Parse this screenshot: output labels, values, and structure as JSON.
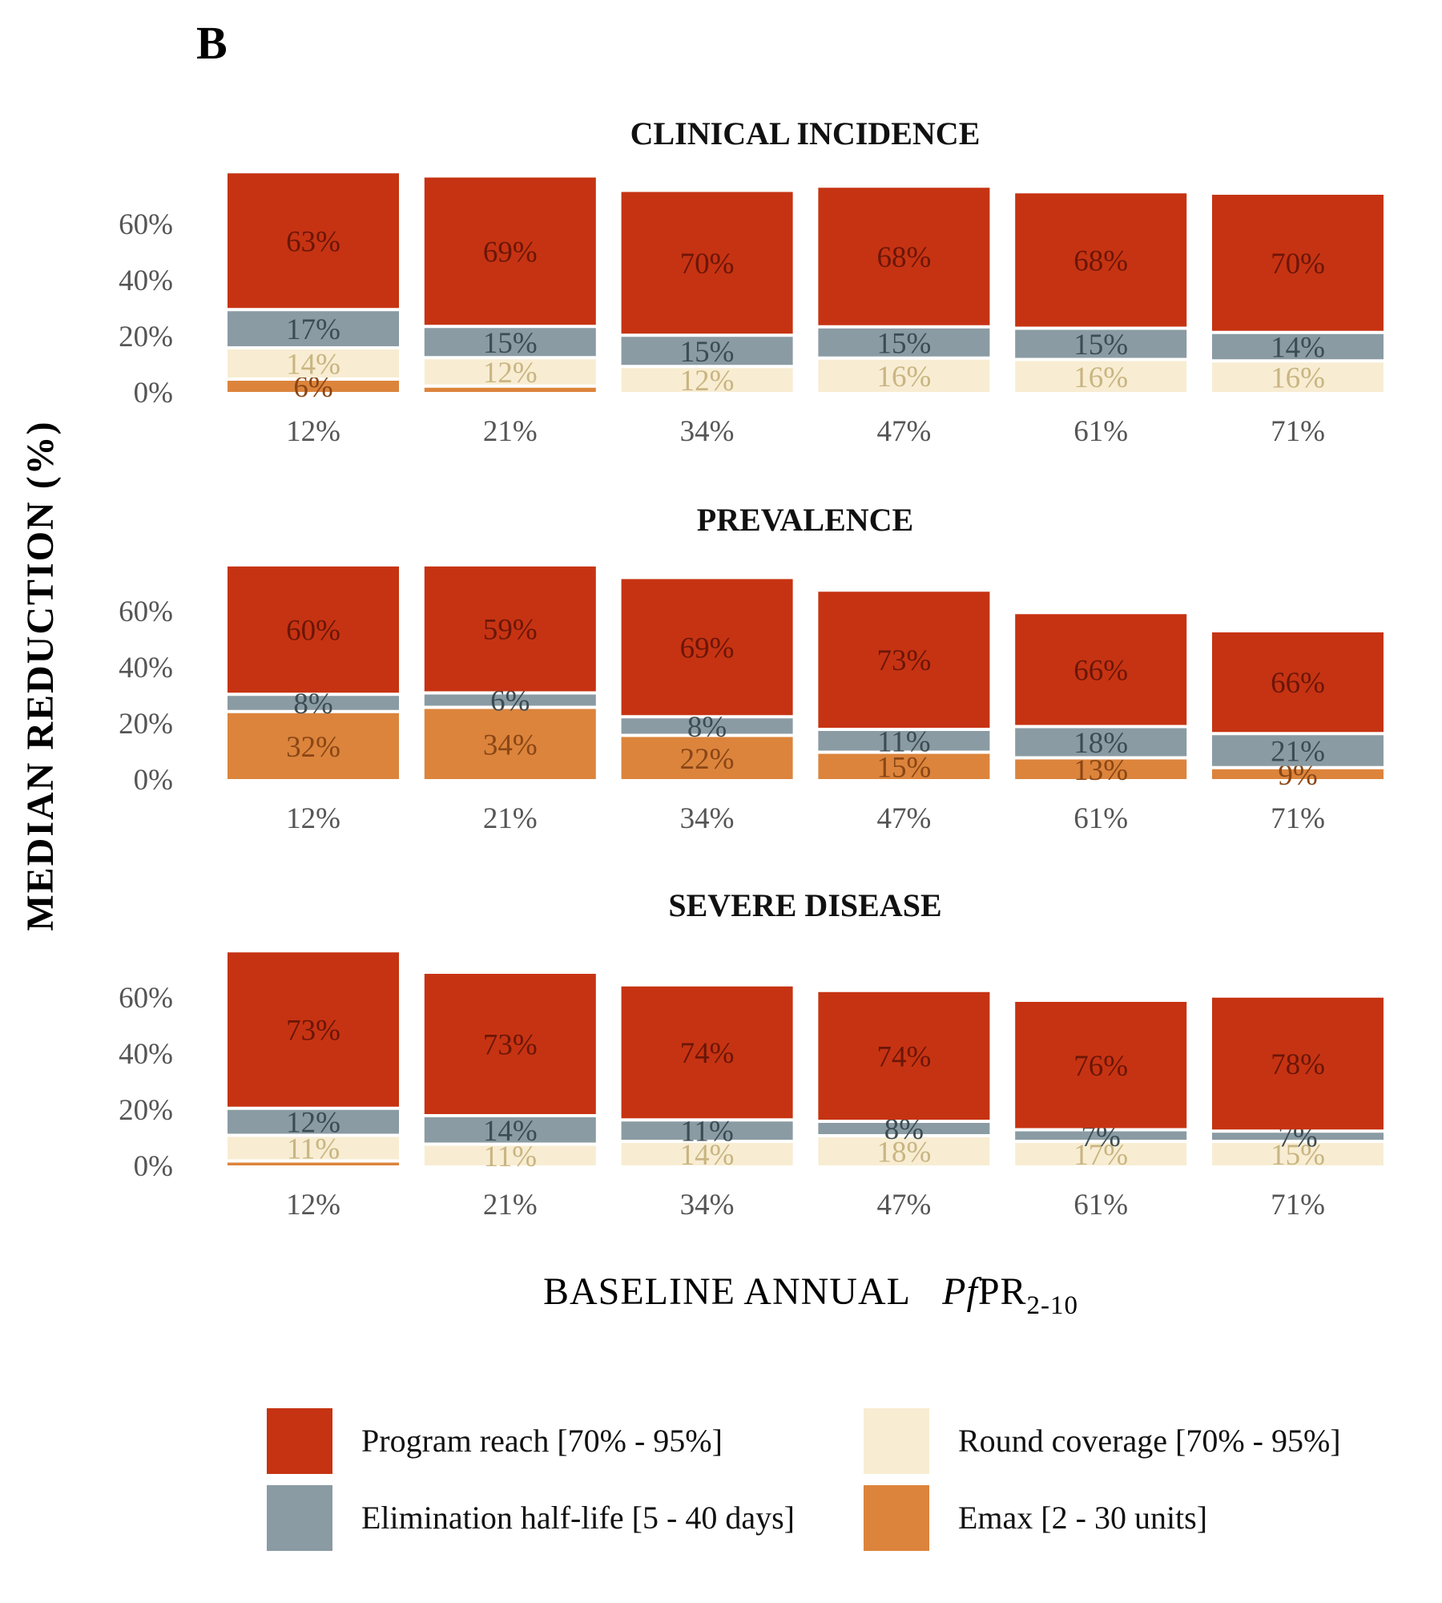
{
  "panel_letter": "B",
  "chart_data": {
    "type": "bar",
    "stacked": true,
    "ylabel": "MEDIAN REDUCTION (%)",
    "xlabel_main": "BASELINE ANNUAL",
    "xlabel_italic": "Pf",
    "xlabel_rest": "PR",
    "xlabel_sub": "2-10",
    "y_ticks": [
      "0%",
      "20%",
      "40%",
      "60%"
    ],
    "ylim": [
      0,
      75
    ],
    "categories": [
      "12%",
      "21%",
      "34%",
      "47%",
      "61%",
      "71%"
    ],
    "legend": [
      {
        "name": "Program reach [70% - 95%]",
        "color": "#c63312"
      },
      {
        "name": "Elimination half-life [5 - 40 days]",
        "color": "#8a9ba3"
      },
      {
        "name": "Round coverage [70% - 95%]",
        "color": "#f8edd2"
      },
      {
        "name": "Emax [2 - 30 units]",
        "color": "#dc843c"
      }
    ],
    "panels": [
      {
        "title": "CLINICAL INCIDENCE",
        "series": [
          {
            "name": "Emax [2 - 30 units]",
            "values": [
              4,
              1.5,
              0,
              0,
              0,
              0
            ],
            "labels": [
              "6%",
              "",
              "",
              "",
              "",
              ""
            ]
          },
          {
            "name": "Round coverage [70% - 95%]",
            "values": [
              10,
              9,
              8.5,
              11.5,
              11,
              10.5
            ],
            "labels": [
              "14%",
              "12%",
              "12%",
              "16%",
              "16%",
              "16%"
            ]
          },
          {
            "name": "Elimination half-life [5 - 40 days]",
            "values": [
              12.5,
              10,
              10,
              10,
              10,
              9
            ],
            "labels": [
              "17%",
              "15%",
              "15%",
              "15%",
              "15%",
              "14%"
            ]
          },
          {
            "name": "Program reach [70% - 95%]",
            "values": [
              48,
              52.5,
              50.5,
              49,
              47.5,
              48.5
            ],
            "labels": [
              "63%",
              "69%",
              "70%",
              "68%",
              "68%",
              "70%"
            ]
          }
        ]
      },
      {
        "title": "PREVALENCE",
        "series": [
          {
            "name": "Emax [2 - 30 units]",
            "values": [
              23.5,
              25,
              15,
              9,
              7,
              3.5
            ],
            "labels": [
              "32%",
              "34%",
              "22%",
              "15%",
              "13%",
              "9%"
            ]
          },
          {
            "name": "Round coverage [70% - 95%]",
            "values": [
              0,
              0,
              0,
              0,
              0,
              0
            ],
            "labels": [
              "",
              "",
              "",
              "",
              "",
              ""
            ]
          },
          {
            "name": "Elimination half-life [5 - 40 days]",
            "values": [
              5,
              4,
              5.5,
              7,
              10,
              11
            ],
            "labels": [
              "8%",
              "6%",
              "8%",
              "11%",
              "18%",
              "21%"
            ]
          },
          {
            "name": "Program reach [70% - 95%]",
            "values": [
              45,
              44.5,
              48.5,
              48.5,
              39.5,
              35.5
            ],
            "labels": [
              "60%",
              "59%",
              "69%",
              "73%",
              "66%",
              "66%"
            ]
          }
        ]
      },
      {
        "title": "SEVERE DISEASE",
        "series": [
          {
            "name": "Emax [2 - 30 units]",
            "values": [
              1,
              0,
              0,
              0,
              0,
              0
            ],
            "labels": [
              "",
              "",
              "",
              "",
              "",
              ""
            ]
          },
          {
            "name": "Round coverage [70% - 95%]",
            "values": [
              8,
              7,
              8,
              10,
              8,
              8
            ],
            "labels": [
              "11%",
              "11%",
              "14%",
              "18%",
              "17%",
              "15%"
            ]
          },
          {
            "name": "Elimination half-life [5 - 40 days]",
            "values": [
              8.5,
              9,
              6.5,
              4,
              3,
              2.5
            ],
            "labels": [
              "12%",
              "14%",
              "11%",
              "8%",
              "7%",
              "7%"
            ]
          },
          {
            "name": "Program reach [70% - 95%]",
            "values": [
              55,
              50,
              47,
              45.5,
              45,
              47
            ],
            "labels": [
              "73%",
              "73%",
              "74%",
              "74%",
              "76%",
              "78%"
            ]
          }
        ]
      }
    ]
  }
}
